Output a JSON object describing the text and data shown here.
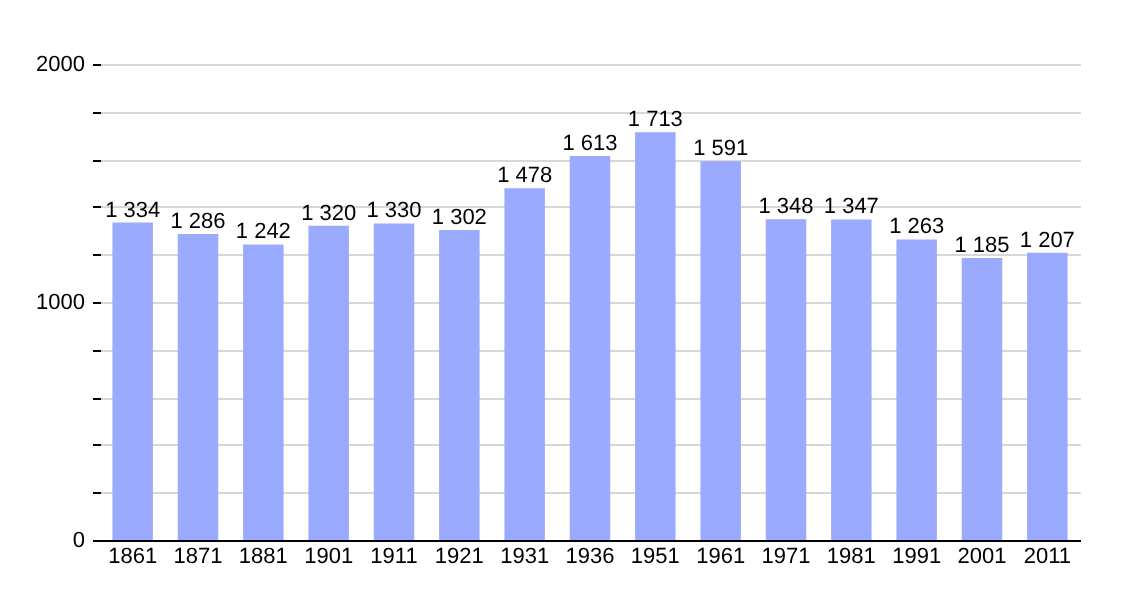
{
  "chart_data": {
    "type": "bar",
    "categories": [
      "1861",
      "1871",
      "1881",
      "1901",
      "1911",
      "1921",
      "1931",
      "1936",
      "1951",
      "1961",
      "1971",
      "1981",
      "1991",
      "2001",
      "2011"
    ],
    "values": [
      1334,
      1286,
      1242,
      1320,
      1330,
      1302,
      1478,
      1613,
      1713,
      1591,
      1348,
      1347,
      1263,
      1185,
      1207
    ],
    "value_labels": [
      "1 334",
      "1 286",
      "1 242",
      "1 320",
      "1 330",
      "1 302",
      "1 478",
      "1 613",
      "1 713",
      "1 591",
      "1 348",
      "1 347",
      "1 263",
      "1 185",
      "1 207"
    ],
    "color": "#99aaff",
    "ylim": [
      0,
      2000
    ],
    "yticks": [
      0,
      {
        "value": 200,
        "label": null
      },
      {
        "value": 400,
        "label": null
      },
      {
        "value": 600,
        "label": null
      },
      {
        "value": 800,
        "label": null
      },
      1000,
      {
        "value": 1200,
        "label": null
      },
      {
        "value": 1400,
        "label": null
      },
      {
        "value": 1600,
        "label": null
      },
      {
        "value": 1800,
        "label": null
      },
      2000
    ],
    "grid": true
  }
}
